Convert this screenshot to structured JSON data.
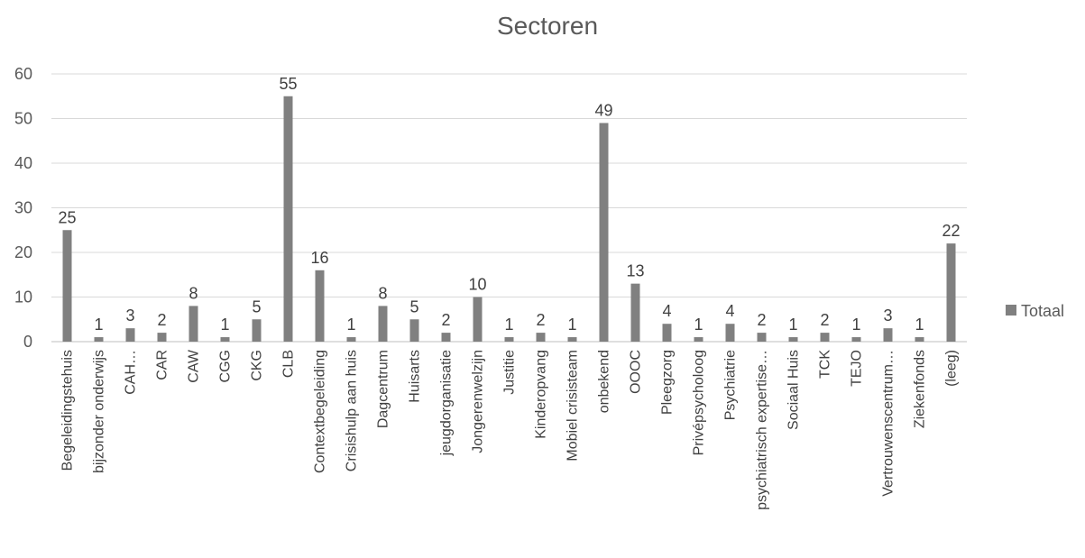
{
  "chart_data": {
    "type": "bar",
    "title": "Sectoren",
    "xlabel": "",
    "ylabel": "",
    "ylim": [
      0,
      60
    ],
    "yticks": [
      0,
      10,
      20,
      30,
      40,
      50,
      60
    ],
    "grid": true,
    "legend_position": "right",
    "color": "#808080",
    "categories": [
      "Begeleidingstehuis",
      "bijzonder onderwijs",
      "CAH…",
      "CAR",
      "CAW",
      "CGG",
      "CKG",
      "CLB",
      "Contextbegeleiding",
      "Crisishulp aan huis",
      "Dagcentrum",
      "Huisarts",
      "jeugdorganisatie",
      "Jongerenwelzijn",
      "Justitie",
      "Kinderopvang",
      "Mobiel crisisteam",
      "onbekend",
      "OOOC",
      "Pleegzorg",
      "Privépsycholoog",
      "Psychiatrie",
      "psychiatrisch expertise…",
      "Sociaal Huis",
      "TCK",
      "TEJO",
      "Vertrouwenscentrum…",
      "Ziekenfonds",
      "(leeg)"
    ],
    "series": [
      {
        "name": "Totaal",
        "values": [
          25,
          1,
          3,
          2,
          8,
          1,
          5,
          55,
          16,
          1,
          8,
          5,
          2,
          10,
          1,
          2,
          1,
          49,
          13,
          4,
          1,
          4,
          2,
          1,
          2,
          1,
          3,
          1,
          22
        ]
      }
    ]
  }
}
